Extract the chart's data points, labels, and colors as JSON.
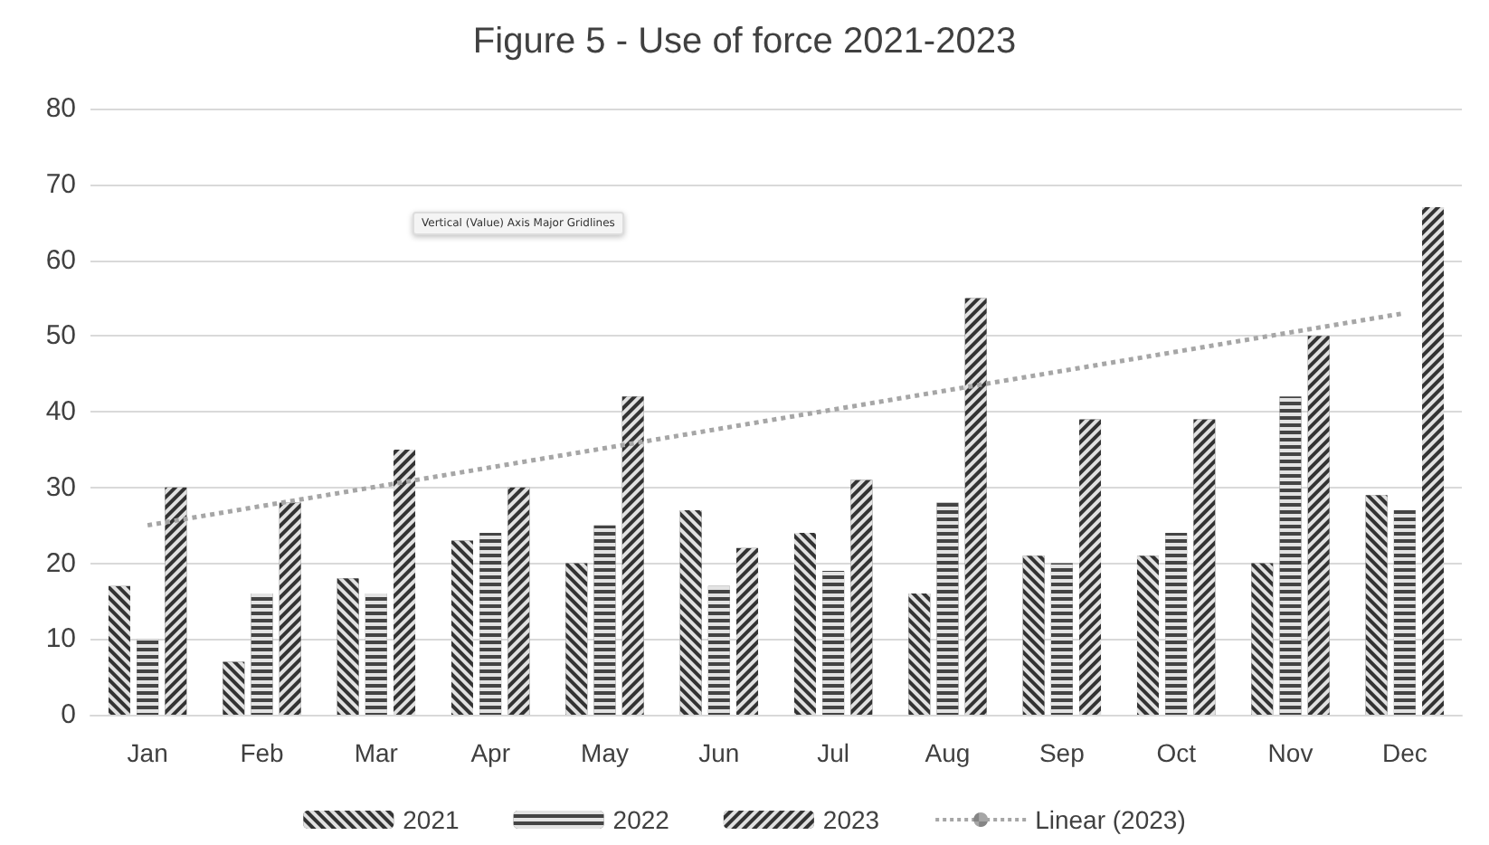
{
  "chart_data": {
    "type": "bar",
    "title": "Figure 5 - Use of force 2021-2023",
    "categories": [
      "Jan",
      "Feb",
      "Mar",
      "Apr",
      "May",
      "Jun",
      "Jul",
      "Aug",
      "Sep",
      "Oct",
      "Nov",
      "Dec"
    ],
    "series": [
      {
        "name": "2021",
        "color": "#333333",
        "values": [
          17,
          7,
          18,
          23,
          20,
          27,
          24,
          16,
          21,
          21,
          20,
          29
        ]
      },
      {
        "name": "2022",
        "color": "#444444",
        "values": [
          10,
          16,
          16,
          24,
          25,
          17,
          19,
          28,
          20,
          24,
          42,
          27
        ]
      },
      {
        "name": "2023",
        "color": "#333333",
        "values": [
          30,
          28,
          35,
          30,
          42,
          22,
          31,
          55,
          39,
          39,
          50,
          67
        ]
      },
      {
        "name": "Linear (2023)",
        "type": "line",
        "color": "#a6a6a6",
        "line_style": "dotted",
        "marker": "none",
        "x": [
          "Jan",
          "Dec"
        ],
        "values": [
          25,
          53
        ]
      }
    ],
    "ylim": [
      0,
      80
    ],
    "yticks": [
      0,
      10,
      20,
      30,
      40,
      50,
      60,
      70,
      80
    ],
    "grid": "y",
    "legend": "bottom",
    "annotations": [
      "Vertical (Value) Axis Major Gridlines"
    ]
  }
}
